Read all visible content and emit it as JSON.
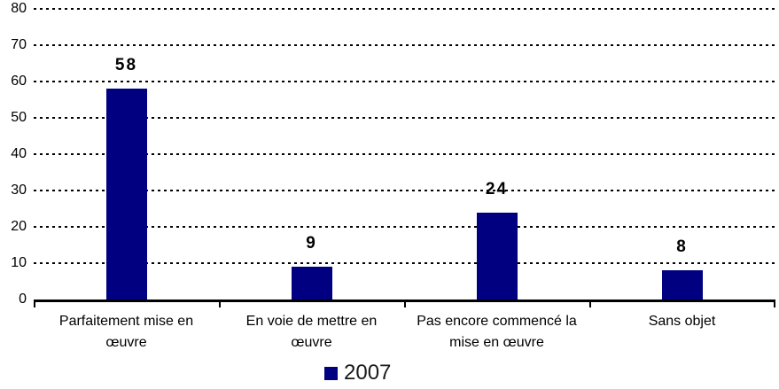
{
  "chart_data": {
    "type": "bar",
    "title": "",
    "xlabel": "",
    "ylabel": "",
    "categories": [
      "Parfaitement mise en œuvre",
      "En voie de mettre en œuvre",
      "Pas encore commencé la mise en œuvre",
      "Sans objet"
    ],
    "category_lines": [
      [
        "Parfaitement mise en",
        "œuvre"
      ],
      [
        "En voie de mettre en",
        "œuvre"
      ],
      [
        "Pas encore commencé la",
        "mise en œuvre"
      ],
      [
        "Sans objet"
      ]
    ],
    "series_name": "2007",
    "values": [
      58,
      9,
      24,
      8
    ],
    "value_labels": [
      "58",
      "9",
      "24",
      "8"
    ],
    "yticks": [
      0,
      10,
      20,
      30,
      40,
      50,
      60,
      70,
      80
    ],
    "ylim": [
      0,
      80
    ],
    "grid": {
      "horizontal": true,
      "style": "dotted",
      "color": "#000000"
    },
    "legend_position": "bottom-center",
    "bar_color": "#000080",
    "axis_color": "#000000",
    "text_color": "#000000"
  }
}
